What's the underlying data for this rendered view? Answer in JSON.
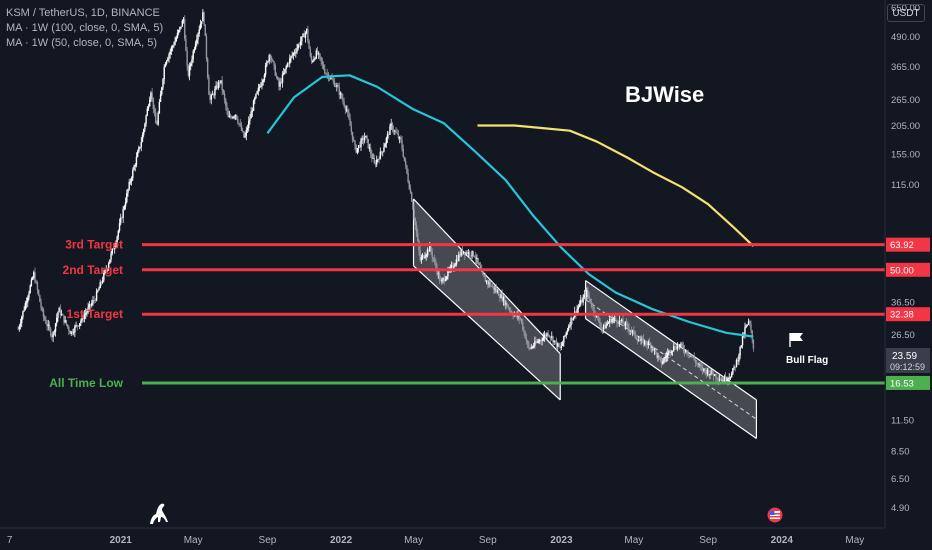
{
  "header": {
    "symbol_line": "KSM / TetherUS, 1D, BINANCE",
    "ma_line_1": "MA · 1W (100, close, 0, SMA, 5)",
    "ma_line_2": "MA · 1W (50, close, 0, SMA, 5)"
  },
  "toolbar": {
    "currency_label": "USDT"
  },
  "watermark": "BJWise",
  "chart_data": {
    "type": "candlestick",
    "title": "KSM / TetherUS, 1D, BINANCE",
    "y_scale": "log",
    "ylim": [
      4,
      700
    ],
    "x_range": [
      "2020-06-15",
      "2024-06-20"
    ],
    "y_tick_labels": [
      "650.00",
      "490.00",
      "365.00",
      "265.00",
      "205.00",
      "155.00",
      "115.00",
      "63.92",
      "50.00",
      "36.50",
      "32.38",
      "26.50",
      "23.59",
      "16.53",
      "11.50",
      "8.50",
      "6.50",
      "4.90"
    ],
    "y_ticks": [
      {
        "label": "650.00",
        "value": 650
      },
      {
        "label": "490.00",
        "value": 490
      },
      {
        "label": "365.00",
        "value": 365
      },
      {
        "label": "265.00",
        "value": 265
      },
      {
        "label": "205.00",
        "value": 205
      },
      {
        "label": "155.00",
        "value": 155
      },
      {
        "label": "115.00",
        "value": 115
      },
      {
        "label": "36.50",
        "value": 36.5
      },
      {
        "label": "26.50",
        "value": 26.5
      },
      {
        "label": "11.50",
        "value": 11.5
      },
      {
        "label": "8.50",
        "value": 8.5
      },
      {
        "label": "6.50",
        "value": 6.5
      },
      {
        "label": "4.90",
        "value": 4.9
      }
    ],
    "x_ticks": [
      {
        "label": "7",
        "date": "2020-07-01"
      },
      {
        "label": "2021",
        "date": "2021-01-01"
      },
      {
        "label": "May",
        "date": "2021-05-01"
      },
      {
        "label": "Sep",
        "date": "2021-09-01"
      },
      {
        "label": "2022",
        "date": "2022-01-01"
      },
      {
        "label": "May",
        "date": "2022-05-01"
      },
      {
        "label": "Sep",
        "date": "2022-09-01"
      },
      {
        "label": "2023",
        "date": "2023-01-01"
      },
      {
        "label": "May",
        "date": "2023-05-01"
      },
      {
        "label": "Sep",
        "date": "2023-09-01"
      },
      {
        "label": "2024",
        "date": "2024-01-01"
      },
      {
        "label": "May",
        "date": "2024-05-01"
      }
    ],
    "price_path": [
      [
        "2020-07-15",
        28
      ],
      [
        "2020-08-10",
        48
      ],
      [
        "2020-08-25",
        32
      ],
      [
        "2020-09-10",
        26
      ],
      [
        "2020-09-20",
        34
      ],
      [
        "2020-10-10",
        27
      ],
      [
        "2020-10-25",
        30
      ],
      [
        "2020-11-20",
        38
      ],
      [
        "2020-12-10",
        52
      ],
      [
        "2020-12-25",
        68
      ],
      [
        "2021-01-15",
        115
      ],
      [
        "2021-02-05",
        180
      ],
      [
        "2021-02-20",
        290
      ],
      [
        "2021-03-01",
        200
      ],
      [
        "2021-03-15",
        380
      ],
      [
        "2021-04-01",
        470
      ],
      [
        "2021-04-15",
        580
      ],
      [
        "2021-04-22",
        330
      ],
      [
        "2021-05-05",
        470
      ],
      [
        "2021-05-18",
        620
      ],
      [
        "2021-05-28",
        260
      ],
      [
        "2021-06-15",
        320
      ],
      [
        "2021-06-28",
        220
      ],
      [
        "2021-07-10",
        230
      ],
      [
        "2021-07-25",
        180
      ],
      [
        "2021-08-10",
        260
      ],
      [
        "2021-08-25",
        330
      ],
      [
        "2021-09-05",
        420
      ],
      [
        "2021-09-20",
        300
      ],
      [
        "2021-10-05",
        380
      ],
      [
        "2021-10-20",
        440
      ],
      [
        "2021-11-05",
        520
      ],
      [
        "2021-11-12",
        380
      ],
      [
        "2021-11-22",
        420
      ],
      [
        "2021-12-05",
        350
      ],
      [
        "2021-12-25",
        300
      ],
      [
        "2022-01-10",
        240
      ],
      [
        "2022-01-25",
        160
      ],
      [
        "2022-02-10",
        185
      ],
      [
        "2022-02-25",
        140
      ],
      [
        "2022-03-10",
        160
      ],
      [
        "2022-03-25",
        205
      ],
      [
        "2022-04-10",
        175
      ],
      [
        "2022-04-28",
        100
      ],
      [
        "2022-05-12",
        55
      ],
      [
        "2022-05-28",
        62
      ],
      [
        "2022-06-15",
        44
      ],
      [
        "2022-07-01",
        50
      ],
      [
        "2022-07-20",
        60
      ],
      [
        "2022-08-10",
        58
      ],
      [
        "2022-08-25",
        46
      ],
      [
        "2022-09-10",
        42
      ],
      [
        "2022-09-25",
        38
      ],
      [
        "2022-10-10",
        33
      ],
      [
        "2022-10-25",
        31
      ],
      [
        "2022-11-08",
        23
      ],
      [
        "2022-11-25",
        25
      ],
      [
        "2022-12-10",
        27
      ],
      [
        "2022-12-30",
        23
      ],
      [
        "2023-01-15",
        30
      ],
      [
        "2023-02-01",
        36
      ],
      [
        "2023-02-12",
        40
      ],
      [
        "2023-02-25",
        33
      ],
      [
        "2023-03-10",
        28
      ],
      [
        "2023-03-25",
        31
      ],
      [
        "2023-04-10",
        30
      ],
      [
        "2023-04-25",
        28
      ],
      [
        "2023-05-10",
        25
      ],
      [
        "2023-05-30",
        24
      ],
      [
        "2023-06-15",
        20
      ],
      [
        "2023-07-01",
        23
      ],
      [
        "2023-07-15",
        24
      ],
      [
        "2023-08-01",
        22
      ],
      [
        "2023-08-20",
        19
      ],
      [
        "2023-09-10",
        18
      ],
      [
        "2023-09-25",
        17
      ],
      [
        "2023-10-10",
        18
      ],
      [
        "2023-10-20",
        21
      ],
      [
        "2023-11-01",
        28
      ],
      [
        "2023-11-08",
        30
      ],
      [
        "2023-11-15",
        23.59
      ]
    ],
    "series": [
      {
        "name": "MA · 1W (50, close, 0, SMA, 5)",
        "color": "#26c6da",
        "points": [
          [
            "2021-09-01",
            190
          ],
          [
            "2021-10-15",
            270
          ],
          [
            "2021-12-01",
            330
          ],
          [
            "2022-01-15",
            335
          ],
          [
            "2022-03-01",
            300
          ],
          [
            "2022-05-01",
            240
          ],
          [
            "2022-06-20",
            210
          ],
          [
            "2022-08-10",
            160
          ],
          [
            "2022-10-01",
            120
          ],
          [
            "2022-11-15",
            85
          ],
          [
            "2023-01-01",
            62
          ],
          [
            "2023-02-15",
            48
          ],
          [
            "2023-04-01",
            40
          ],
          [
            "2023-06-01",
            34
          ],
          [
            "2023-08-01",
            30
          ],
          [
            "2023-10-01",
            27
          ],
          [
            "2023-11-15",
            26
          ]
        ]
      },
      {
        "name": "MA · 1W (100, close, 0, SMA, 5)",
        "color": "#f5e16b",
        "points": [
          [
            "2022-08-15",
            205
          ],
          [
            "2022-10-15",
            205
          ],
          [
            "2022-12-01",
            200
          ],
          [
            "2023-01-15",
            195
          ],
          [
            "2023-03-01",
            175
          ],
          [
            "2023-04-20",
            150
          ],
          [
            "2023-06-01",
            130
          ],
          [
            "2023-07-20",
            112
          ],
          [
            "2023-09-01",
            95
          ],
          [
            "2023-10-15",
            75
          ],
          [
            "2023-11-15",
            63
          ]
        ]
      }
    ],
    "horizontal_levels": [
      {
        "name": "3rd Target",
        "value": 63.92,
        "label": "63.92",
        "color": "#f23645"
      },
      {
        "name": "2nd Target",
        "value": 50.0,
        "label": "50.00",
        "color": "#f23645"
      },
      {
        "name": "1st Target",
        "value": 32.38,
        "label": "32.38",
        "color": "#f23645"
      },
      {
        "name": "All Time Low",
        "value": 16.53,
        "label": "16.53",
        "color": "#4caf50"
      }
    ],
    "channels": [
      {
        "top_start": [
          "2022-05-01",
          100
        ],
        "top_end": [
          "2022-12-30",
          22
        ],
        "bottom_start": [
          "2022-05-01",
          52
        ],
        "bottom_end": [
          "2022-12-30",
          14
        ]
      },
      {
        "top_start": [
          "2023-02-10",
          45
        ],
        "top_end": [
          "2023-11-20",
          14
        ],
        "bottom_start": [
          "2023-02-10",
          31
        ],
        "bottom_end": [
          "2023-11-20",
          9.6
        ]
      }
    ],
    "current_price": {
      "value": 23.59,
      "label": "23.59",
      "countdown": "09:12:59"
    },
    "annotation": {
      "text": "Bull Flag"
    }
  }
}
